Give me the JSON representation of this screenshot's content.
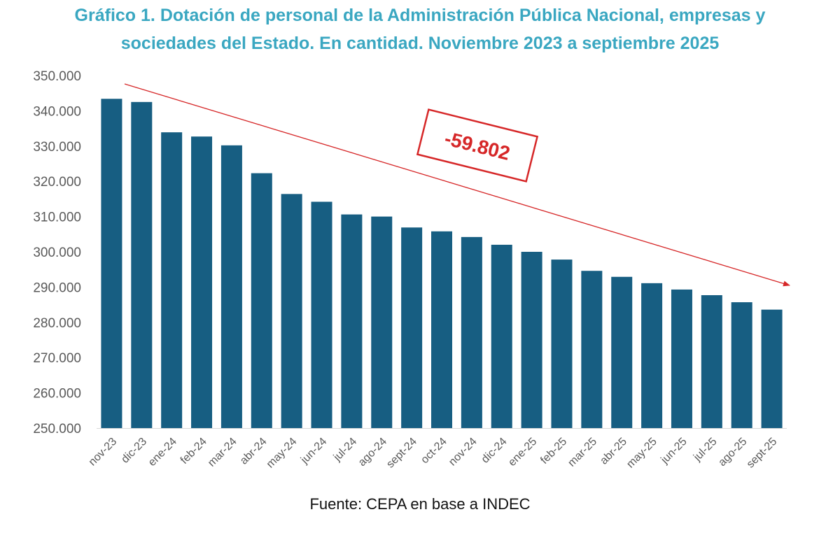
{
  "chart_data": {
    "type": "bar",
    "title_lines": [
      "Gráfico 1. Dotación de personal de la Administración Pública Nacional, empresas y",
      "sociedades del Estado. En cantidad. Noviembre 2023 a septiembre 2025"
    ],
    "xlabel": "",
    "ylabel": "",
    "ylim": [
      250000,
      350000
    ],
    "yticks": [
      250000,
      260000,
      270000,
      280000,
      290000,
      300000,
      310000,
      320000,
      330000,
      340000,
      350000
    ],
    "ytick_labels": [
      "250.000",
      "260.000",
      "270.000",
      "280.000",
      "290.000",
      "300.000",
      "310.000",
      "320.000",
      "330.000",
      "340.000",
      "350.000"
    ],
    "grid": false,
    "categories": [
      "nov-23",
      "dic-23",
      "ene-24",
      "feb-24",
      "mar-24",
      "abr-24",
      "may-24",
      "jun-24",
      "jul-24",
      "ago-24",
      "sept-24",
      "oct-24",
      "nov-24",
      "dic-24",
      "ene-25",
      "feb-25",
      "mar-25",
      "abr-25",
      "may-25",
      "jun-25",
      "jul-25",
      "ago-25",
      "sept-25"
    ],
    "values": [
      343400,
      342500,
      333900,
      332700,
      330200,
      322300,
      316400,
      314200,
      310600,
      310000,
      306900,
      305800,
      304200,
      302000,
      300000,
      297800,
      294600,
      292900,
      291100,
      289300,
      287700,
      285700,
      283600
    ],
    "annotation": {
      "text": "-59.802",
      "color": "#d62728"
    },
    "colors": {
      "bar": "#175e82",
      "title": "#3aa7c1",
      "axis_text": "#595959",
      "arrow": "#d62728"
    }
  },
  "source": "Fuente: CEPA en base a INDEC"
}
